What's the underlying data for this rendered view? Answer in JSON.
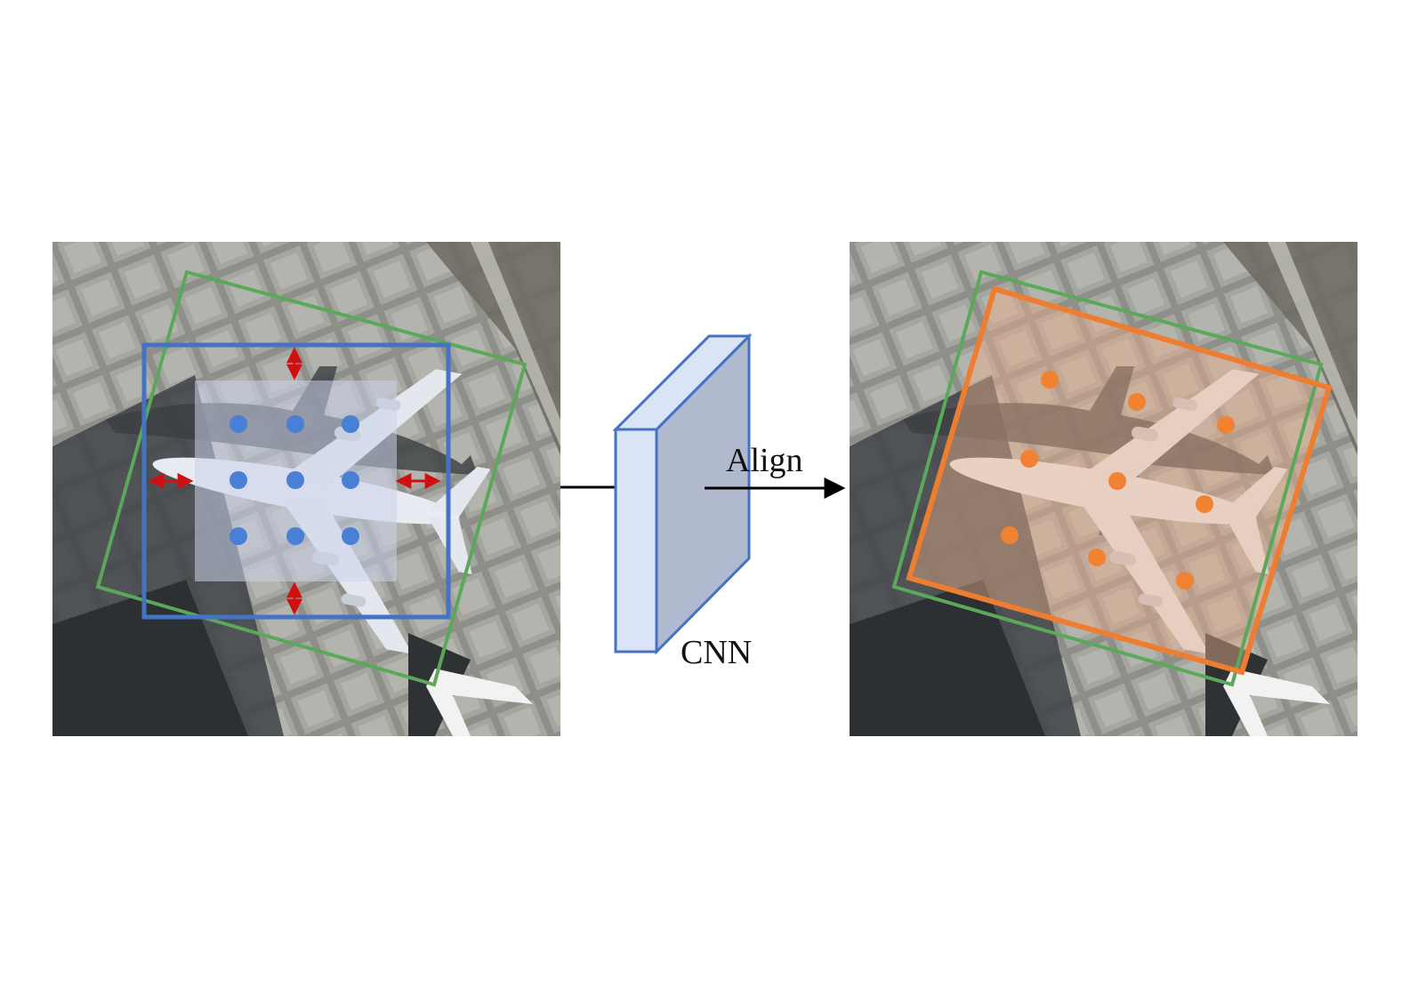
{
  "labels": {
    "align": "Align",
    "cnn": "CNN"
  },
  "colors": {
    "blue_box": "#4472c4",
    "green_box": "#5ba85b",
    "orange_box": "#ed7d31",
    "red_arrow": "#d01010",
    "cnn_front": "#dbe3f6",
    "cnn_side": "#b0b9cd",
    "arrow": "#000000"
  },
  "icons": {
    "input_panel": "aerial-airplane-image",
    "output_panel": "aerial-airplane-image",
    "sampling_points": "blue-dot-grid",
    "aligned_points": "orange-dots",
    "cnn_block": "3d-feature-block"
  }
}
